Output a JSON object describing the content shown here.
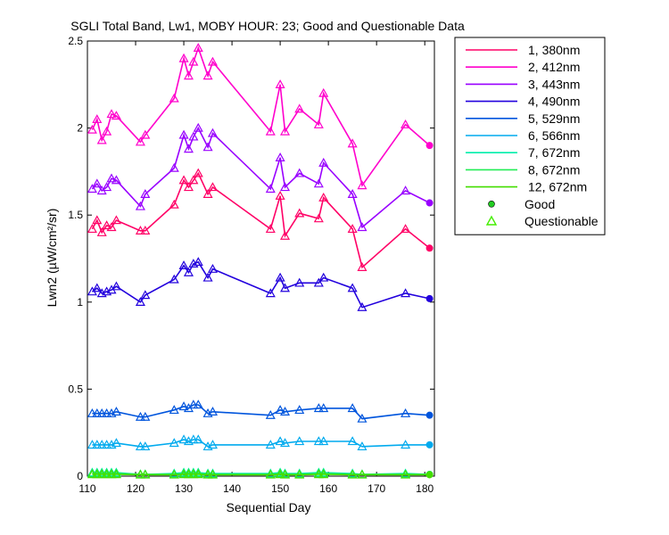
{
  "chart_data": {
    "type": "line",
    "title": "SGLI Total Band, Lw1, MOBY HOUR: 23;  Good and Questionable Data",
    "xlabel": "Sequential Day",
    "ylabel": "Lwn2 (µW/cm²/sr)",
    "xlim": [
      110,
      182
    ],
    "ylim": [
      0,
      2.5
    ],
    "xticks": [
      110,
      120,
      130,
      140,
      150,
      160,
      170,
      180
    ],
    "yticks": [
      0,
      0.5,
      1,
      1.5,
      2,
      2.5
    ],
    "grid": false,
    "legend_position": "outside-right",
    "x": [
      111,
      112,
      113,
      114,
      115,
      116,
      121,
      122,
      128,
      130,
      131,
      132,
      133,
      135,
      136,
      148,
      150,
      151,
      154,
      158,
      159,
      165,
      167,
      176,
      181
    ],
    "good_x": [
      181
    ],
    "series": [
      {
        "name": "1, 380nm",
        "color": "#ff0066",
        "values": [
          1.42,
          1.47,
          1.4,
          1.44,
          1.43,
          1.47,
          1.41,
          1.41,
          1.56,
          1.7,
          1.66,
          1.7,
          1.74,
          1.62,
          1.66,
          1.42,
          1.61,
          1.38,
          1.51,
          1.48,
          1.6,
          1.42,
          1.2,
          1.42,
          1.31
        ]
      },
      {
        "name": "2, 412nm",
        "color": "#ff00cc",
        "values": [
          1.99,
          2.05,
          1.93,
          1.98,
          2.08,
          2.07,
          1.92,
          1.96,
          2.17,
          2.4,
          2.3,
          2.38,
          2.46,
          2.3,
          2.38,
          1.98,
          2.25,
          1.98,
          2.11,
          2.02,
          2.2,
          1.91,
          1.67,
          2.02,
          1.9
        ]
      },
      {
        "name": "3, 443nm",
        "color": "#9900ff",
        "values": [
          1.65,
          1.68,
          1.64,
          1.66,
          1.71,
          1.7,
          1.55,
          1.62,
          1.77,
          1.96,
          1.88,
          1.95,
          2.0,
          1.89,
          1.97,
          1.65,
          1.83,
          1.66,
          1.74,
          1.68,
          1.8,
          1.62,
          1.43,
          1.64,
          1.57
        ]
      },
      {
        "name": "4, 490nm",
        "color": "#2200dd",
        "values": [
          1.06,
          1.08,
          1.05,
          1.06,
          1.07,
          1.09,
          1.0,
          1.04,
          1.13,
          1.21,
          1.17,
          1.22,
          1.23,
          1.14,
          1.19,
          1.05,
          1.14,
          1.08,
          1.11,
          1.11,
          1.14,
          1.08,
          0.97,
          1.05,
          1.02
        ]
      },
      {
        "name": "5, 529nm",
        "color": "#0055dd",
        "values": [
          0.36,
          0.36,
          0.36,
          0.36,
          0.36,
          0.37,
          0.34,
          0.34,
          0.38,
          0.4,
          0.39,
          0.41,
          0.41,
          0.36,
          0.37,
          0.35,
          0.38,
          0.37,
          0.38,
          0.39,
          0.39,
          0.39,
          0.33,
          0.36,
          0.35
        ]
      },
      {
        "name": "6, 566nm",
        "color": "#00aaee",
        "values": [
          0.18,
          0.18,
          0.18,
          0.18,
          0.18,
          0.19,
          0.17,
          0.17,
          0.19,
          0.21,
          0.2,
          0.21,
          0.21,
          0.17,
          0.18,
          0.18,
          0.2,
          0.19,
          0.2,
          0.2,
          0.2,
          0.2,
          0.17,
          0.18,
          0.18
        ]
      },
      {
        "name": "7, 672nm",
        "color": "#00eeaa",
        "values": [
          0.02,
          0.02,
          0.02,
          0.02,
          0.02,
          0.02,
          0.01,
          0.01,
          0.015,
          0.02,
          0.02,
          0.02,
          0.02,
          0.015,
          0.015,
          0.015,
          0.02,
          0.015,
          0.015,
          0.02,
          0.02,
          0.015,
          0.01,
          0.015,
          0.01
        ]
      },
      {
        "name": "8, 672nm",
        "color": "#22ee55",
        "values": [
          0.015,
          0.015,
          0.015,
          0.015,
          0.015,
          0.015,
          0.01,
          0.01,
          0.01,
          0.015,
          0.015,
          0.015,
          0.015,
          0.01,
          0.01,
          0.01,
          0.015,
          0.01,
          0.01,
          0.015,
          0.015,
          0.01,
          0.01,
          0.01,
          0.01
        ]
      },
      {
        "name": "12, 672nm",
        "color": "#44dd00",
        "values": [
          0.01,
          0.01,
          0.01,
          0.01,
          0.01,
          0.01,
          0.008,
          0.008,
          0.008,
          0.01,
          0.01,
          0.01,
          0.01,
          0.008,
          0.008,
          0.008,
          0.01,
          0.008,
          0.008,
          0.01,
          0.01,
          0.008,
          0.008,
          0.008,
          0.008
        ]
      }
    ],
    "marker_legend": [
      {
        "name": "Good",
        "marker": "circle",
        "color": "#22cc22"
      },
      {
        "name": "Questionable",
        "marker": "triangle",
        "color": "#44ee00"
      }
    ]
  }
}
